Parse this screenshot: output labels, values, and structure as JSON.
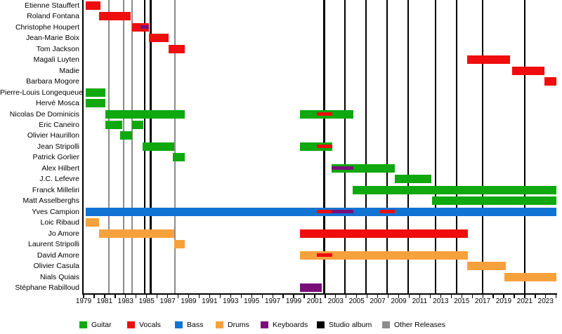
{
  "chart_data": {
    "type": "timeline",
    "description": "Band members timeline chart with roles as colored bars and release events as vertical lines",
    "x_axis": {
      "start": 1979,
      "end": 2024,
      "tick_interval": 1,
      "label_interval": 2,
      "tick_labels": [
        "1979",
        "1981",
        "1983",
        "1985",
        "1987",
        "1989",
        "1991",
        "1993",
        "1995",
        "1997",
        "1999",
        "2001",
        "2003",
        "2005",
        "2007",
        "2009",
        "2011",
        "2013",
        "2015",
        "2017",
        "2019",
        "2021",
        "2023"
      ]
    },
    "colors": {
      "guitar": "#0FA80F",
      "vocals": "#EF0D0D",
      "bass": "#1173D4",
      "drums": "#F7A13D",
      "keyboards": "#7A0F7A",
      "album": "#000000",
      "other": "#8C8C8C"
    },
    "legend": [
      {
        "label": "Guitar",
        "key": "guitar"
      },
      {
        "label": "Vocals",
        "key": "vocals"
      },
      {
        "label": "Bass",
        "key": "bass"
      },
      {
        "label": "Drums",
        "key": "drums"
      },
      {
        "label": "Keyboards",
        "key": "keyboards"
      },
      {
        "label": "Studio album",
        "key": "album"
      },
      {
        "label": "Other Releases",
        "key": "other"
      }
    ],
    "events": {
      "studio_albums": [
        1984.8,
        1985.4,
        2001.9,
        2003.9,
        2005.9,
        2007.9,
        2009.9,
        2012.5,
        2014.5,
        2017.0,
        2021.0
      ],
      "other_releases": [
        1981.4,
        1982.8,
        1983.6,
        1987.7
      ]
    },
    "members": [
      {
        "name": "Etienne Stauffert",
        "bars": [
          {
            "role": "vocals",
            "start": 1979.2,
            "end": 1980.6
          }
        ]
      },
      {
        "name": "Roland Fontana",
        "bars": [
          {
            "role": "vocals",
            "start": 1980.5,
            "end": 1983.5
          }
        ]
      },
      {
        "name": "Christophe Houpert",
        "bars": [
          {
            "role": "vocals",
            "start": 1983.6,
            "end": 1985.2,
            "overlays": [
              {
                "role": "keyboards",
                "start": 1984.4,
                "end": 1985.2
              }
            ]
          }
        ]
      },
      {
        "name": "Jean-Marie Boix",
        "bars": [
          {
            "role": "vocals",
            "start": 1985.2,
            "end": 1987.1
          }
        ]
      },
      {
        "name": "Tom Jackson",
        "bars": [
          {
            "role": "vocals",
            "start": 1987.1,
            "end": 1988.6
          }
        ]
      },
      {
        "name": "Magali Luyten",
        "bars": [
          {
            "role": "vocals",
            "start": 2015.5,
            "end": 2019.6
          }
        ]
      },
      {
        "name": "Madie",
        "bars": [
          {
            "role": "vocals",
            "start": 2019.8,
            "end": 2022.9
          }
        ]
      },
      {
        "name": "Barbara Mogore",
        "bars": [
          {
            "role": "vocals",
            "start": 2022.9,
            "end": 2024
          }
        ]
      },
      {
        "name": "Pierre-Louis Longequeue",
        "bars": [
          {
            "role": "guitar",
            "start": 1979.2,
            "end": 1981.1
          }
        ]
      },
      {
        "name": "Hervé Mosca",
        "bars": [
          {
            "role": "guitar",
            "start": 1979.2,
            "end": 1981.1
          }
        ]
      },
      {
        "name": "Nicolas De Dominicis",
        "bars": [
          {
            "role": "guitar",
            "start": 1981.1,
            "end": 1988.6
          },
          {
            "role": "guitar",
            "start": 1999.6,
            "end": 2004.7,
            "overlays": [
              {
                "role": "vocals",
                "start": 2001.2,
                "end": 2002.7
              }
            ]
          }
        ]
      },
      {
        "name": "Eric Caneiro",
        "bars": [
          {
            "role": "guitar",
            "start": 1981.1,
            "end": 1982.7
          },
          {
            "role": "guitar",
            "start": 1983.6,
            "end": 1984.7
          }
        ]
      },
      {
        "name": "Olivier Haurillon",
        "bars": [
          {
            "role": "guitar",
            "start": 1982.5,
            "end": 1983.6
          }
        ]
      },
      {
        "name": "Jean Stripolli",
        "bars": [
          {
            "role": "guitar",
            "start": 1984.6,
            "end": 1987.6
          },
          {
            "role": "guitar",
            "start": 1999.6,
            "end": 2002.7,
            "overlays": [
              {
                "role": "vocals",
                "start": 2001.2,
                "end": 2002.7
              }
            ]
          }
        ]
      },
      {
        "name": "Patrick Gorlier",
        "bars": [
          {
            "role": "guitar",
            "start": 1987.5,
            "end": 1988.6
          }
        ]
      },
      {
        "name": "Alex Hilbert",
        "bars": [
          {
            "role": "guitar",
            "start": 2002.6,
            "end": 2008.6,
            "overlays": [
              {
                "role": "keyboards",
                "start": 2002.6,
                "end": 2004.7
              }
            ]
          }
        ]
      },
      {
        "name": "J.C. Lefevre",
        "bars": [
          {
            "role": "guitar",
            "start": 2008.6,
            "end": 2012.1
          }
        ]
      },
      {
        "name": "Franck Milleliri",
        "bars": [
          {
            "role": "guitar",
            "start": 2004.6,
            "end": 2024
          }
        ]
      },
      {
        "name": "Matt Asselberghs",
        "bars": [
          {
            "role": "guitar",
            "start": 2012.2,
            "end": 2024
          }
        ]
      },
      {
        "name": "Yves Campion",
        "bars": [
          {
            "role": "bass",
            "start": 1979.2,
            "end": 2024,
            "overlays": [
              {
                "role": "vocals",
                "start": 2001.2,
                "end": 2002.6
              },
              {
                "role": "keyboards",
                "start": 2002.6,
                "end": 2004.7
              },
              {
                "role": "vocals",
                "start": 2007.2,
                "end": 2008.6
              }
            ]
          }
        ]
      },
      {
        "name": "Loic Ribaud",
        "bars": [
          {
            "role": "drums",
            "start": 1979.2,
            "end": 1980.5
          }
        ]
      },
      {
        "name": "Jo Amore",
        "bars": [
          {
            "role": "drums",
            "start": 1980.5,
            "end": 1987.6
          },
          {
            "role": "vocals",
            "start": 1999.6,
            "end": 2015.6
          }
        ]
      },
      {
        "name": "Laurent Stripolli",
        "bars": [
          {
            "role": "drums",
            "start": 1987.6,
            "end": 1988.6
          }
        ]
      },
      {
        "name": "David Amore",
        "bars": [
          {
            "role": "drums",
            "start": 1999.6,
            "end": 2015.6,
            "overlays": [
              {
                "role": "vocals",
                "start": 2001.2,
                "end": 2002.7
              }
            ]
          }
        ]
      },
      {
        "name": "Olivier Casula",
        "bars": [
          {
            "role": "drums",
            "start": 2015.5,
            "end": 2019.2
          }
        ]
      },
      {
        "name": "Nials Quiais",
        "bars": [
          {
            "role": "drums",
            "start": 2019.1,
            "end": 2024
          }
        ]
      },
      {
        "name": "Stéphane Rabilloud",
        "bars": [
          {
            "role": "keyboards",
            "start": 1999.6,
            "end": 2001.7
          }
        ]
      }
    ]
  }
}
